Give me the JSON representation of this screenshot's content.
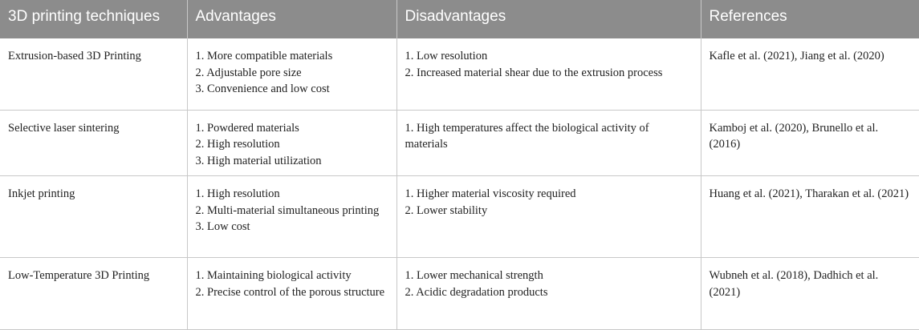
{
  "table": {
    "headers": [
      "3D printing techniques",
      "Advantages",
      "Disadvantages",
      "References"
    ],
    "rows": [
      {
        "technique": "Extrusion-based 3D Printing",
        "advantages": [
          "1. More compatible materials",
          "2. Adjustable pore size",
          "3. Convenience and low cost"
        ],
        "disadvantages": [
          "1. Low resolution",
          "2. Increased material shear due to the extrusion process"
        ],
        "references": "Kafle et al. (2021), Jiang et al. (2020)"
      },
      {
        "technique": "Selective laser sintering",
        "advantages": [
          "1. Powdered materials",
          "2. High resolution",
          "3. High material utilization"
        ],
        "disadvantages": [
          "1. High temperatures affect the biological activity of materials"
        ],
        "references": "Kamboj et al. (2020), Brunello et al. (2016)"
      },
      {
        "technique": "Inkjet printing",
        "advantages": [
          "1. High resolution",
          "2. Multi-material simultaneous printing",
          "3. Low cost"
        ],
        "disadvantages": [
          "1. Higher material viscosity required",
          "2. Lower stability"
        ],
        "references": "Huang et al. (2021), Tharakan et al. (2021)"
      },
      {
        "technique": "Low-Temperature 3D Printing",
        "advantages": [
          "1. Maintaining biological activity",
          "2. Precise control of the porous structure"
        ],
        "disadvantages": [
          "1. Lower mechanical strength",
          "2. Acidic degradation products"
        ],
        "references": "Wubneh et al. (2018), Dadhich et al. (2021)"
      }
    ]
  },
  "colors": {
    "header_bg": "#8c8c8c",
    "header_text": "#ffffff",
    "grid_line": "#c8c8c8",
    "body_text": "#222222"
  }
}
